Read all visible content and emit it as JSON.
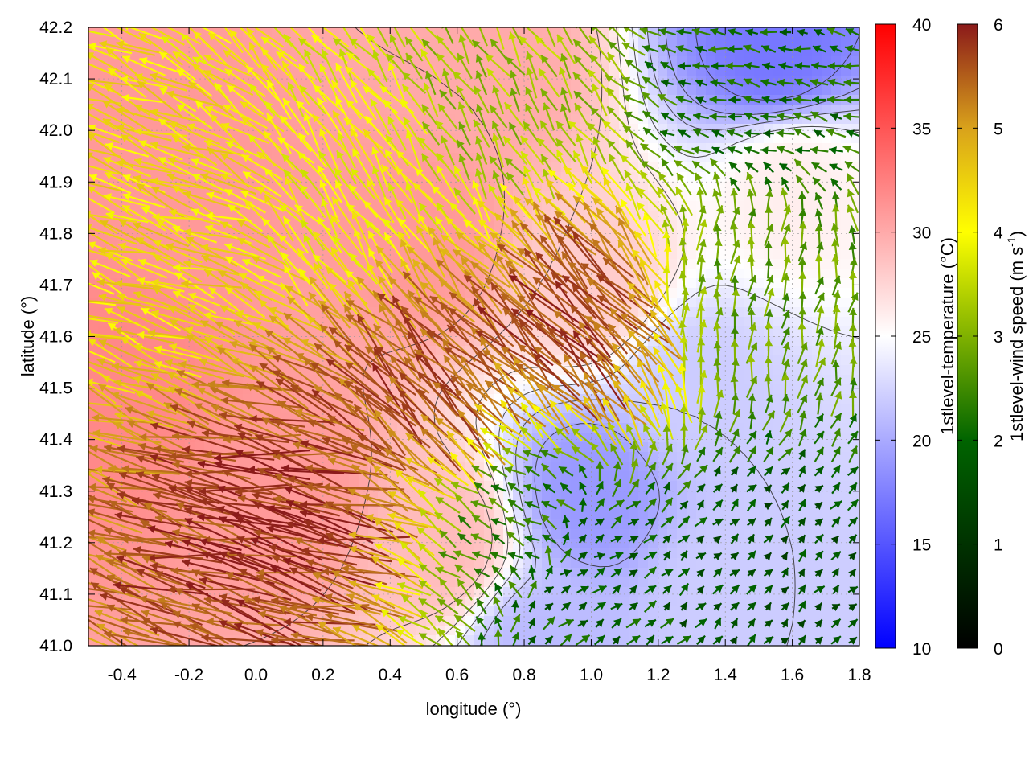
{
  "chart_data": {
    "type": "heatmap",
    "subtype": "temperature field with wind vectors and contours",
    "xlabel": "longitude (°)",
    "ylabel": "latitude (°)",
    "xlim": [
      -0.5,
      1.8
    ],
    "ylim": [
      41.0,
      42.2
    ],
    "xticks": [
      "-0.4",
      "-0.2",
      "0.0",
      "0.2",
      "0.4",
      "0.6",
      "0.8",
      "1.0",
      "1.2",
      "1.4",
      "1.6",
      "1.8"
    ],
    "xtick_values": [
      -0.4,
      -0.2,
      0.0,
      0.2,
      0.4,
      0.6,
      0.8,
      1.0,
      1.2,
      1.4,
      1.6,
      1.8
    ],
    "yticks": [
      "41.0",
      "41.1",
      "41.2",
      "41.3",
      "41.4",
      "41.5",
      "41.6",
      "41.7",
      "41.8",
      "41.9",
      "42.0",
      "42.1",
      "42.2"
    ],
    "ytick_values": [
      41.0,
      41.1,
      41.2,
      41.3,
      41.4,
      41.5,
      41.6,
      41.7,
      41.8,
      41.9,
      42.0,
      42.1,
      42.2
    ],
    "grid": true,
    "temperature_colorbar": {
      "label": "1stlevel-temperature (°C)",
      "range": [
        10,
        40
      ],
      "ticks": [
        "10",
        "15",
        "20",
        "25",
        "30",
        "35",
        "40"
      ],
      "tick_values": [
        10,
        15,
        20,
        25,
        30,
        35,
        40
      ],
      "colors": [
        "#0000ff",
        "#ffffff",
        "#ff0000"
      ],
      "color_stops": [
        10,
        25,
        40
      ]
    },
    "wind_colorbar": {
      "label_prefix": "1stlevel-wind speed (m s",
      "label_sup": "-1",
      "label_suffix": ")",
      "range": [
        0,
        6
      ],
      "ticks": [
        "0",
        "1",
        "2",
        "3",
        "4",
        "5",
        "6"
      ],
      "tick_values": [
        0,
        1,
        2,
        3,
        4,
        5,
        6
      ],
      "colors": [
        "#000000",
        "#006400",
        "#ffff00",
        "#d9a21b",
        "#8b1a1a"
      ],
      "color_stops": [
        0,
        2,
        4,
        5,
        6
      ]
    },
    "temperature_regions": [
      {
        "lon": -0.4,
        "lat": 41.5,
        "t": 32
      },
      {
        "lon": -0.2,
        "lat": 41.9,
        "t": 31
      },
      {
        "lon": 0.1,
        "lat": 41.3,
        "t": 31
      },
      {
        "lon": 0.5,
        "lat": 41.8,
        "t": 31
      },
      {
        "lon": 0.7,
        "lat": 42.1,
        "t": 30
      },
      {
        "lon": 0.55,
        "lat": 41.2,
        "t": 29
      },
      {
        "lon": 1.0,
        "lat": 41.7,
        "t": 28
      },
      {
        "lon": 1.0,
        "lat": 41.3,
        "t": 19
      },
      {
        "lon": 1.3,
        "lat": 41.5,
        "t": 22
      },
      {
        "lon": 1.55,
        "lat": 42.15,
        "t": 17
      },
      {
        "lon": 1.4,
        "lat": 41.1,
        "t": 22
      },
      {
        "lon": 1.6,
        "lat": 41.9,
        "t": 26
      },
      {
        "lon": 0.85,
        "lat": 41.0,
        "t": 21
      }
    ],
    "wind_regions": [
      {
        "lon": 0.1,
        "lat": 41.25,
        "speed": 5.8,
        "u": -1.0,
        "v": 0.2
      },
      {
        "lon": 0.55,
        "lat": 41.5,
        "speed": 5.6,
        "u": -0.7,
        "v": 0.7
      },
      {
        "lon": 0.95,
        "lat": 41.62,
        "speed": 5.7,
        "u": -0.7,
        "v": 0.7
      },
      {
        "lon": -0.3,
        "lat": 41.8,
        "speed": 4.3,
        "u": -1.0,
        "v": 0.35
      },
      {
        "lon": 0.3,
        "lat": 41.9,
        "speed": 4.0,
        "u": -0.6,
        "v": 0.8
      },
      {
        "lon": 0.7,
        "lat": 42.05,
        "speed": 3.2,
        "u": -0.5,
        "v": 0.8
      },
      {
        "lon": 1.5,
        "lat": 41.15,
        "speed": 1.6,
        "u": 0.7,
        "v": 0.7
      },
      {
        "lon": 1.5,
        "lat": 41.7,
        "speed": 2.8,
        "u": 0.2,
        "v": 1.0
      },
      {
        "lon": 1.5,
        "lat": 42.1,
        "speed": 2.0,
        "u": -1.0,
        "v": 0.2
      },
      {
        "lon": 1.0,
        "lat": 41.15,
        "speed": 1.8,
        "u": 0.8,
        "v": 0.5
      },
      {
        "lon": 0.8,
        "lat": 41.25,
        "speed": 2.4,
        "u": -0.8,
        "v": 0.4
      }
    ]
  }
}
